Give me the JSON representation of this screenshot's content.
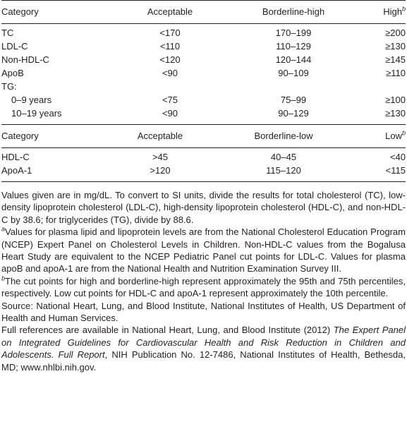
{
  "table1": {
    "header": [
      "Category",
      "Acceptable",
      "Borderline-high",
      "High"
    ],
    "header_note": "b",
    "rows": [
      [
        "TC",
        "<170",
        "170–199",
        "≥200"
      ],
      [
        "LDL-C",
        "<110",
        "110–129",
        "≥130"
      ],
      [
        "Non-HDL-C",
        "<120",
        "120–144",
        "≥145"
      ],
      [
        "ApoB",
        "<90",
        "90–109",
        "≥110"
      ],
      [
        "TG:"
      ],
      [
        "0–9 years",
        "<75",
        "75–99",
        "≥100"
      ],
      [
        "10–19 years",
        "<90",
        "90–129",
        "≥130"
      ]
    ]
  },
  "table2": {
    "header": [
      "Category",
      "Acceptable",
      "Borderline-low",
      "Low"
    ],
    "header_note": "b",
    "rows": [
      [
        "HDL-C",
        ">45",
        "40–45",
        "<40"
      ],
      [
        "ApoA-1",
        ">120",
        "115–120",
        "<115"
      ]
    ]
  },
  "notes": {
    "units": "Values given are in mg/dL. To convert to SI units, divide the results for total cholesterol (TC), low-density lipoprotein cholesterol (LDL-C), high-density lipoprotein cholesterol (HDL-C), and non-HDL-C by 38.6; for triglycerides (TG), divide by 88.6.",
    "note_a": {
      "marker": "a",
      "text": "Values for plasma lipid and lipoprotein levels are from the National Cholesterol Education Program (NCEP) Expert Panel on Cholesterol Levels in Children. Non-HDL-C values from the Bogalusa Heart Study are equivalent to the NCEP Pediatric Panel cut points for LDL-C. Values for plasma apoB and apoA-1 are from the National Health and Nutrition Examination Survey III."
    },
    "note_b": {
      "marker": "b",
      "text": "The cut points for high and borderline-high represent approximately the 95th and 75th percentiles, respectively. Low cut points for HDL-C and apoA-1 represent approximately the 10th percentile."
    },
    "source": "Source: National Heart, Lung, and Blood Institute, National Institutes of Health, US Department of Health and Human Services.",
    "references": {
      "text_before": "Full references are available in National Heart, Lung, and Blood Institute (2012)",
      "title": "The Expert Panel on Integrated Guidelines for Cardiovascular Health and Risk Reduction in Children and Adolescents. Full Report",
      "text_after": ", NIH Publication No. 12-7486, National Institutes of Health, Bethesda, MD; www.nhlbi.nih.gov."
    }
  }
}
